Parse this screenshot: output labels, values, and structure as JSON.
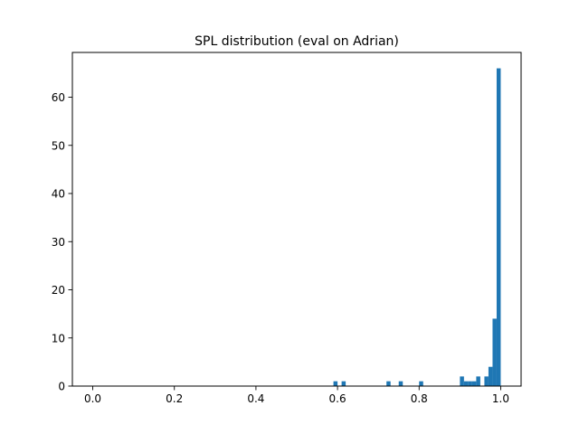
{
  "chart_data": {
    "type": "bar",
    "title": "SPL distribution (eval on Adrian)",
    "xlabel": "",
    "ylabel": "",
    "xlim": [
      -0.05,
      1.05
    ],
    "ylim": [
      0,
      69.3
    ],
    "grid": false,
    "legend": "none",
    "bar_color": "#1f77b4",
    "x_ticks": [
      {
        "value": 0.0,
        "label": "0.0"
      },
      {
        "value": 0.2,
        "label": "0.2"
      },
      {
        "value": 0.4,
        "label": "0.4"
      },
      {
        "value": 0.6,
        "label": "0.6"
      },
      {
        "value": 0.8,
        "label": "0.8"
      },
      {
        "value": 1.0,
        "label": "1.0"
      }
    ],
    "y_ticks": [
      {
        "value": 0,
        "label": "0"
      },
      {
        "value": 10,
        "label": "10"
      },
      {
        "value": 20,
        "label": "20"
      },
      {
        "value": 30,
        "label": "30"
      },
      {
        "value": 40,
        "label": "40"
      },
      {
        "value": 50,
        "label": "50"
      },
      {
        "value": 60,
        "label": "60"
      }
    ],
    "bin_width": 0.01,
    "bins": [
      {
        "x0": 0.59,
        "x1": 0.6,
        "count": 1
      },
      {
        "x0": 0.61,
        "x1": 0.62,
        "count": 1
      },
      {
        "x0": 0.72,
        "x1": 0.73,
        "count": 1
      },
      {
        "x0": 0.75,
        "x1": 0.76,
        "count": 1
      },
      {
        "x0": 0.8,
        "x1": 0.81,
        "count": 1
      },
      {
        "x0": 0.9,
        "x1": 0.91,
        "count": 2
      },
      {
        "x0": 0.91,
        "x1": 0.92,
        "count": 1
      },
      {
        "x0": 0.92,
        "x1": 0.93,
        "count": 1
      },
      {
        "x0": 0.93,
        "x1": 0.94,
        "count": 1
      },
      {
        "x0": 0.94,
        "x1": 0.95,
        "count": 2
      },
      {
        "x0": 0.96,
        "x1": 0.97,
        "count": 2
      },
      {
        "x0": 0.97,
        "x1": 0.98,
        "count": 4
      },
      {
        "x0": 0.98,
        "x1": 0.99,
        "count": 14
      },
      {
        "x0": 0.99,
        "x1": 1.0,
        "count": 66
      }
    ]
  }
}
